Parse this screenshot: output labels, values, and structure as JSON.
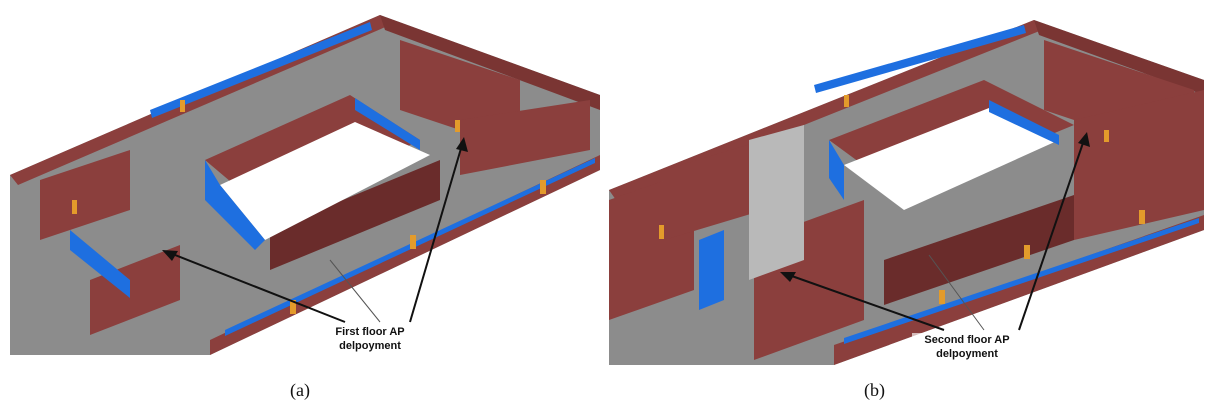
{
  "panels": [
    {
      "caption": "(a)",
      "annotation_line1": "First floor AP",
      "annotation_line2": "delpoyment"
    },
    {
      "caption": "(b)",
      "annotation_line1": "Second floor AP",
      "annotation_line2": "delpoyment"
    }
  ],
  "colors": {
    "wall": "#8b3f3d",
    "wall_dark": "#6a2c2b",
    "floor": "#8c8c8c",
    "window": "#1e6fe0",
    "door": "#e39b2b",
    "courtyard": "#ffffff"
  }
}
